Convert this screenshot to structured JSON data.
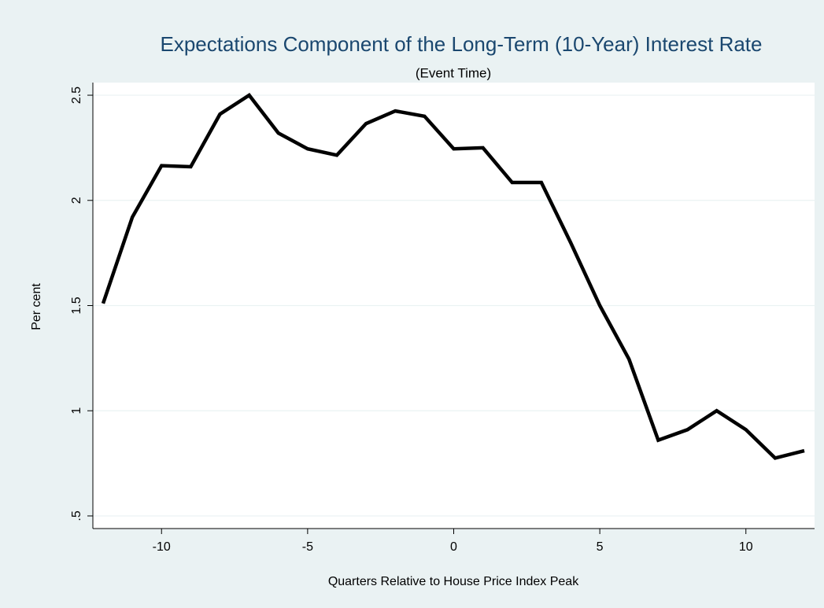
{
  "chart_data": {
    "type": "line",
    "title": "Expectations Component of the Long-Term (10-Year) Interest Rate",
    "subtitle": "(Event Time)",
    "x_label": "Quarters Relative to House Price Index Peak",
    "y_label": "Per cent",
    "x": [
      -12,
      -11,
      -10,
      -9,
      -8,
      -7,
      -6,
      -5,
      -4,
      -3,
      -2,
      -1,
      0,
      1,
      2,
      3,
      4,
      5,
      6,
      7,
      8,
      9,
      10,
      11,
      12
    ],
    "series": [
      {
        "color": "#000000",
        "values": [
          1.51,
          1.92,
          2.165,
          2.16,
          2.41,
          2.5,
          2.32,
          2.245,
          2.215,
          2.365,
          2.425,
          2.4,
          2.245,
          2.25,
          2.085,
          2.085,
          1.8,
          1.5,
          1.245,
          0.86,
          0.91,
          1.0,
          0.91,
          0.775,
          0.81
        ]
      }
    ],
    "xlim": [
      -12.35,
      12.35
    ],
    "ylim": [
      0.44,
      2.56
    ],
    "xticks": [
      -10,
      -5,
      0,
      5,
      10
    ],
    "yticks": [
      {
        "value": 0.5,
        "label": ".5"
      },
      1,
      1.5,
      2,
      2.5
    ],
    "grid": true
  }
}
